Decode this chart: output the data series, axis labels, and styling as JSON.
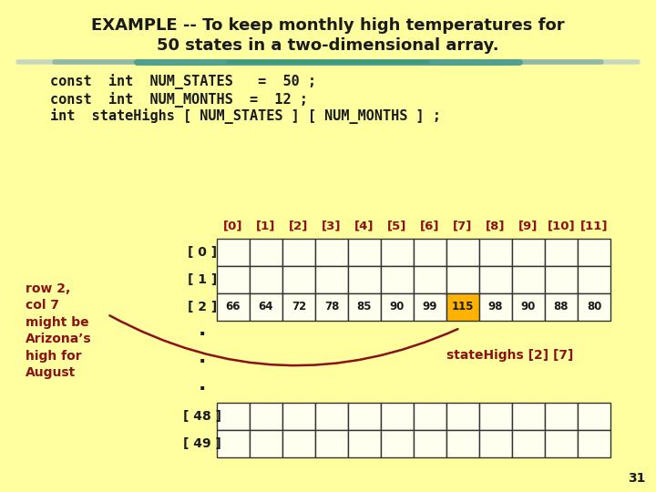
{
  "bg_color": "#FFFFA0",
  "title_line1": "EXAMPLE -- To keep monthly high temperatures for",
  "title_line2": "50 states in a two-dimensional array.",
  "title_color": "#1a1a1a",
  "title_fontsize": 13,
  "code_lines": [
    "const  int  NUM_STATES   =  50 ;",
    "const  int  NUM_MONTHS  =  12 ;",
    "int  stateHighs [ NUM_STATES ] [ NUM_MONTHS ] ;"
  ],
  "code_color": "#1a1a1a",
  "code_fontsize": 11,
  "col_indices": [
    "[0]",
    "[1]",
    "[2]",
    "[3]",
    "[4]",
    "[5]",
    "[6]",
    "[7]",
    "[8]",
    "[9]",
    "[10]",
    "[11]"
  ],
  "col_index_color": "#8B1010",
  "row2_values": [
    "66",
    "64",
    "72",
    "78",
    "85",
    "90",
    "99",
    "115",
    "98",
    "90",
    "88",
    "80"
  ],
  "highlighted_cell": 7,
  "highlighted_bg": "#FFB300",
  "grid_color": "#333333",
  "cell_bg": "#FFFFF0",
  "annotation_text": "row 2,\ncol 7\nmight be\nArizona’s\nhigh for\nAugust",
  "annotation_color": "#8B1010",
  "annotation_fontsize": 10,
  "statehighs_label": "stateHighs [2] [7]",
  "statehighs_color": "#8B1010",
  "page_number": "31",
  "separator_color": "#70A898",
  "arrow_color": "#8B1010"
}
